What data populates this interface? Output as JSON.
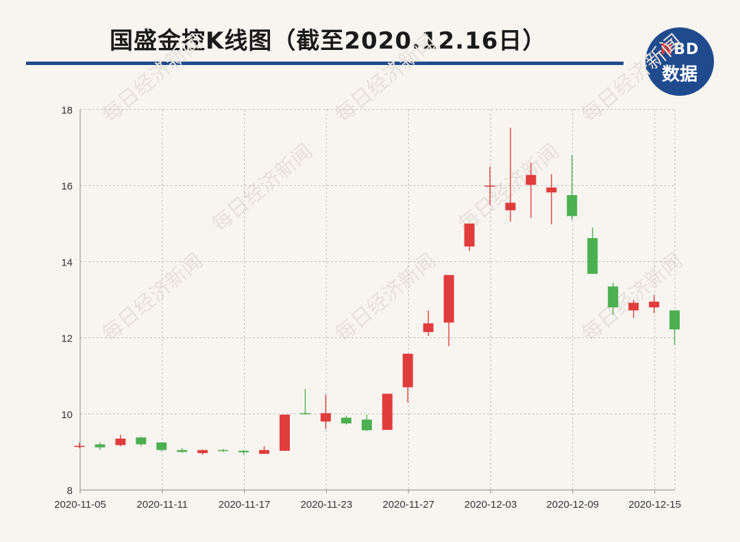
{
  "header": {
    "title": "国盛金控K线图（截至2020.12.16日）",
    "logo_top_n": "N",
    "logo_top_rest": "BD",
    "logo_bottom": "数据"
  },
  "colors": {
    "up": "#e03c3c",
    "down": "#4caf50",
    "brand": "#1f4b8e"
  },
  "chart_data": {
    "type": "candlestick",
    "title": "国盛金控K线图（截至2020.12.16日）",
    "watermark": "每日经济新闻",
    "ylim": [
      8,
      18
    ],
    "yticks": [
      8,
      10,
      12,
      14,
      16,
      18
    ],
    "xtick_labels": [
      "2020-11-05",
      "2020-11-11",
      "2020-11-17",
      "2020-11-23",
      "2020-11-27",
      "2020-12-03",
      "2020-12-09",
      "2020-12-15"
    ],
    "xtick_index": [
      0,
      4,
      8,
      12,
      16,
      20,
      24,
      28
    ],
    "grid": true,
    "candles": [
      {
        "open": 9.13,
        "close": 9.16,
        "high": 9.25,
        "low": 9.1
      },
      {
        "open": 9.2,
        "close": 9.12,
        "high": 9.25,
        "low": 9.05
      },
      {
        "open": 9.18,
        "close": 9.35,
        "high": 9.45,
        "low": 9.15
      },
      {
        "open": 9.38,
        "close": 9.2,
        "high": 9.4,
        "low": 9.15
      },
      {
        "open": 9.25,
        "close": 9.05,
        "high": 9.25,
        "low": 9.02
      },
      {
        "open": 9.05,
        "close": 9.0,
        "high": 9.1,
        "low": 8.98
      },
      {
        "open": 8.97,
        "close": 9.05,
        "high": 9.06,
        "low": 8.93
      },
      {
        "open": 9.05,
        "close": 9.03,
        "high": 9.08,
        "low": 9.0
      },
      {
        "open": 9.03,
        "close": 8.99,
        "high": 9.05,
        "low": 8.93
      },
      {
        "open": 8.95,
        "close": 9.05,
        "high": 9.15,
        "low": 8.95
      },
      {
        "open": 9.03,
        "close": 9.98,
        "high": 9.98,
        "low": 9.03
      },
      {
        "open": 10.02,
        "close": 10.0,
        "high": 10.65,
        "low": 9.98
      },
      {
        "open": 9.8,
        "close": 10.02,
        "high": 10.5,
        "low": 9.6
      },
      {
        "open": 9.9,
        "close": 9.75,
        "high": 9.95,
        "low": 9.72
      },
      {
        "open": 9.85,
        "close": 9.57,
        "high": 9.98,
        "low": 9.55
      },
      {
        "open": 9.58,
        "close": 10.53,
        "high": 10.53,
        "low": 9.58
      },
      {
        "open": 10.7,
        "close": 11.58,
        "high": 11.58,
        "low": 10.3
      },
      {
        "open": 12.15,
        "close": 12.38,
        "high": 12.72,
        "low": 12.05
      },
      {
        "open": 12.4,
        "close": 13.65,
        "high": 13.65,
        "low": 11.78
      },
      {
        "open": 14.4,
        "close": 15.0,
        "high": 15.0,
        "low": 14.28
      },
      {
        "open": 16.0,
        "close": 16.0,
        "high": 16.5,
        "low": 15.5
      },
      {
        "open": 15.35,
        "close": 15.55,
        "high": 17.52,
        "low": 15.05
      },
      {
        "open": 16.02,
        "close": 16.28,
        "high": 16.6,
        "low": 15.15
      },
      {
        "open": 15.82,
        "close": 15.95,
        "high": 16.3,
        "low": 14.98
      },
      {
        "open": 15.75,
        "close": 15.2,
        "high": 16.8,
        "low": 15.1
      },
      {
        "open": 14.62,
        "close": 13.68,
        "high": 14.9,
        "low": 13.68
      },
      {
        "open": 13.35,
        "close": 12.8,
        "high": 13.45,
        "low": 12.6
      },
      {
        "open": 12.72,
        "close": 12.92,
        "high": 13.0,
        "low": 12.52
      },
      {
        "open": 12.8,
        "close": 12.95,
        "high": 13.12,
        "low": 12.65
      },
      {
        "open": 12.72,
        "close": 12.22,
        "high": 12.72,
        "low": 11.82
      }
    ]
  }
}
